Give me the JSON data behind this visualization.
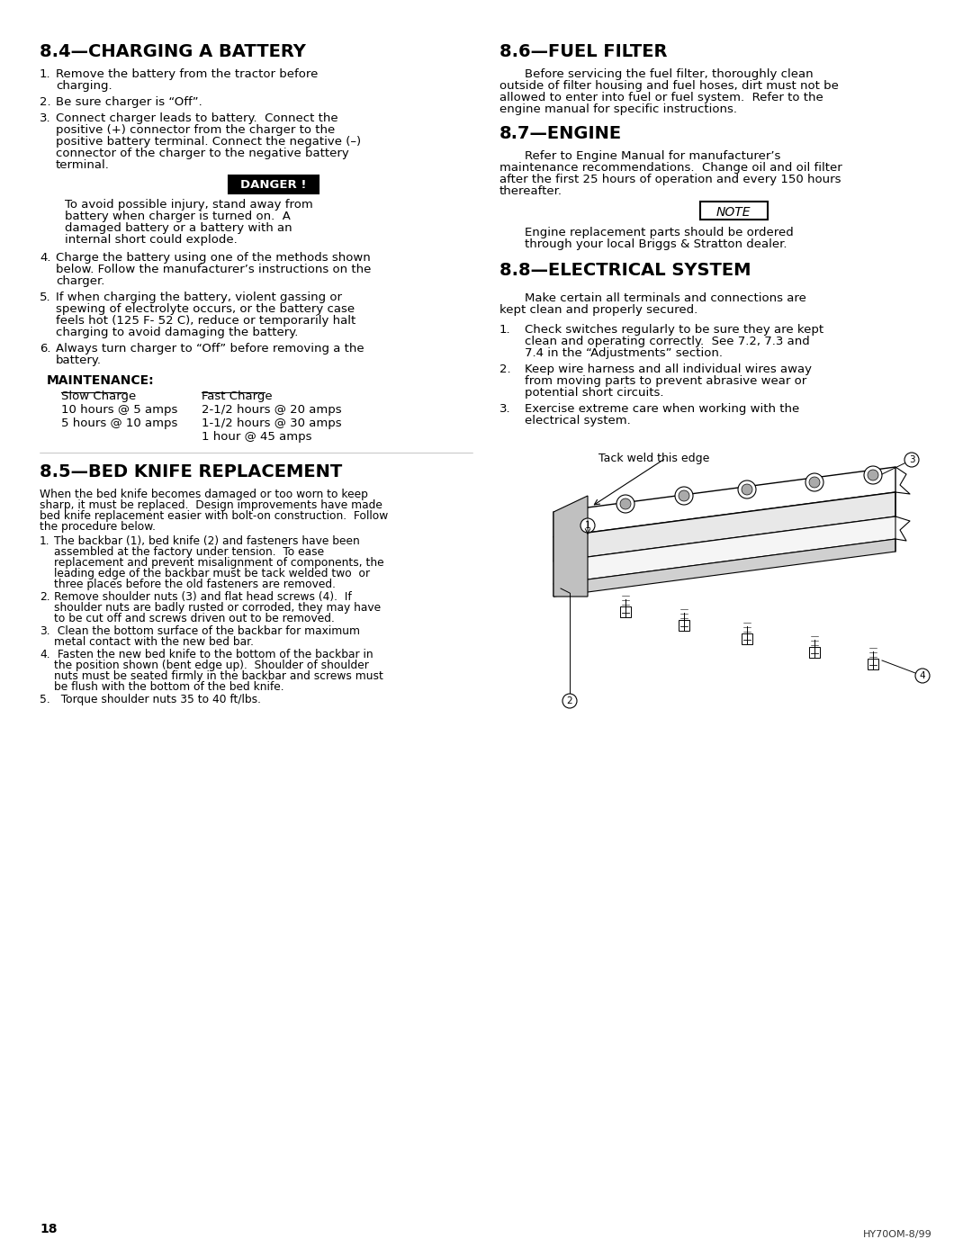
{
  "bg_color": "#ffffff",
  "page_number": "18",
  "footer_text": "HY70OM-8/99",
  "sec84_title": "8.4—CHARGING A BATTERY",
  "sec86_title": "8.6—FUEL FILTER",
  "sec87_title": "8.7—ENGINE",
  "sec88_title": "8.8—ELECTRICAL SYSTEM",
  "sec85_title": "8.5—BED KNIFE REPLACEMENT",
  "danger_label": "DANGER !",
  "note_label": "NOTE",
  "maintenance_title": "MAINTENANCE:",
  "slow_charge_label": "Slow Charge",
  "fast_charge_label": "Fast Charge",
  "tack_weld_label": "Tack weld this edge",
  "col_divider": 0.5
}
